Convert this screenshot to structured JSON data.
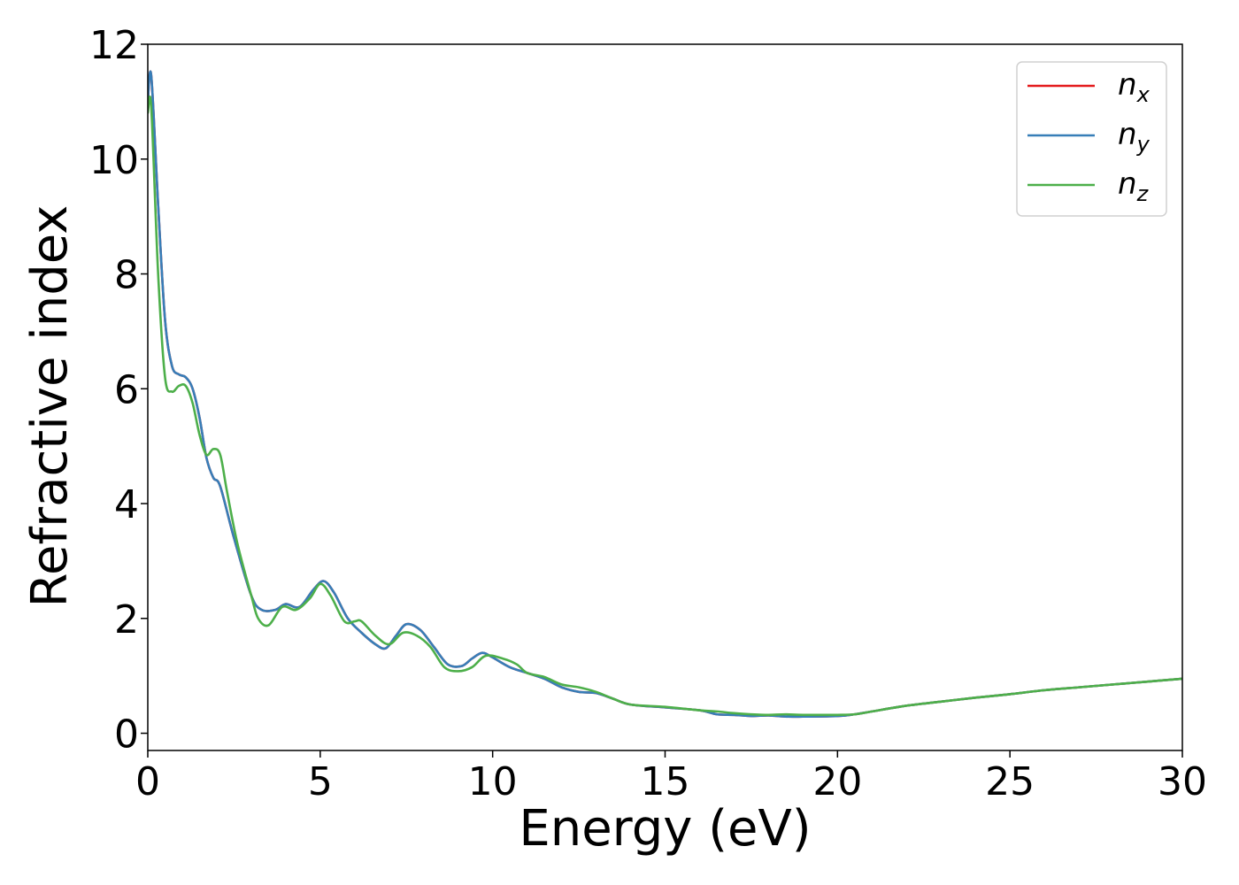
{
  "chart_data": {
    "type": "line",
    "title": "",
    "xlabel": "Energy (eV)",
    "ylabel": "Refractive index",
    "xlim": [
      0,
      30
    ],
    "ylim": [
      -0.3,
      12
    ],
    "xticks": [
      "0",
      "5",
      "10",
      "15",
      "20",
      "25",
      "30"
    ],
    "yticks": [
      "0",
      "2",
      "4",
      "6",
      "8",
      "10",
      "12"
    ],
    "grid": false,
    "legend_position": "top-right",
    "series": [
      {
        "name": "n",
        "subscript": "x",
        "color": "#e41a1c",
        "x": [
          0,
          0.1,
          0.3,
          0.5,
          0.7,
          0.9,
          1.1,
          1.3,
          1.5,
          1.7,
          1.9,
          2.1,
          2.5,
          3.0,
          3.3,
          3.7,
          4.0,
          4.4,
          4.8,
          5.1,
          5.4,
          5.8,
          6.2,
          6.6,
          6.9,
          7.2,
          7.5,
          7.9,
          8.3,
          8.7,
          9.1,
          9.4,
          9.7,
          10.0,
          10.5,
          11.0,
          11.5,
          12.0,
          12.5,
          13.0,
          13.5,
          14.0,
          15.0,
          16.0,
          16.5,
          17.0,
          17.5,
          18.0,
          18.5,
          19.0,
          20.0,
          20.5,
          21.0,
          22.0,
          23.0,
          24.0,
          25.0,
          26.0,
          27.0,
          28.0,
          29.0,
          30.0
        ],
        "y": [
          11.0,
          11.45,
          9.2,
          7.2,
          6.4,
          6.25,
          6.2,
          6.0,
          5.5,
          4.8,
          4.45,
          4.3,
          3.4,
          2.4,
          2.15,
          2.15,
          2.25,
          2.2,
          2.5,
          2.65,
          2.45,
          2.0,
          1.75,
          1.55,
          1.48,
          1.7,
          1.9,
          1.8,
          1.5,
          1.2,
          1.17,
          1.3,
          1.4,
          1.32,
          1.15,
          1.05,
          0.95,
          0.8,
          0.72,
          0.7,
          0.6,
          0.5,
          0.45,
          0.4,
          0.33,
          0.32,
          0.3,
          0.31,
          0.29,
          0.29,
          0.3,
          0.33,
          0.38,
          0.48,
          0.55,
          0.62,
          0.68,
          0.75,
          0.8,
          0.85,
          0.9,
          0.95
        ]
      },
      {
        "name": "n",
        "subscript": "y",
        "color": "#377eb8",
        "x": [
          0,
          0.1,
          0.3,
          0.5,
          0.7,
          0.9,
          1.1,
          1.3,
          1.5,
          1.7,
          1.9,
          2.1,
          2.5,
          3.0,
          3.3,
          3.7,
          4.0,
          4.4,
          4.8,
          5.1,
          5.4,
          5.8,
          6.2,
          6.6,
          6.9,
          7.2,
          7.5,
          7.9,
          8.3,
          8.7,
          9.1,
          9.4,
          9.7,
          10.0,
          10.5,
          11.0,
          11.5,
          12.0,
          12.5,
          13.0,
          13.5,
          14.0,
          15.0,
          16.0,
          16.5,
          17.0,
          17.5,
          18.0,
          18.5,
          19.0,
          20.0,
          20.5,
          21.0,
          22.0,
          23.0,
          24.0,
          25.0,
          26.0,
          27.0,
          28.0,
          29.0,
          30.0
        ],
        "y": [
          11.0,
          11.45,
          9.2,
          7.2,
          6.4,
          6.25,
          6.2,
          6.0,
          5.5,
          4.8,
          4.45,
          4.3,
          3.4,
          2.4,
          2.15,
          2.15,
          2.25,
          2.2,
          2.5,
          2.65,
          2.45,
          2.0,
          1.75,
          1.55,
          1.48,
          1.7,
          1.9,
          1.8,
          1.5,
          1.2,
          1.17,
          1.3,
          1.4,
          1.32,
          1.15,
          1.05,
          0.95,
          0.8,
          0.72,
          0.7,
          0.6,
          0.5,
          0.45,
          0.4,
          0.33,
          0.32,
          0.3,
          0.31,
          0.29,
          0.29,
          0.3,
          0.33,
          0.38,
          0.48,
          0.55,
          0.62,
          0.68,
          0.75,
          0.8,
          0.85,
          0.9,
          0.95
        ]
      },
      {
        "name": "n",
        "subscript": "z",
        "color": "#4daf4a",
        "x": [
          0,
          0.1,
          0.3,
          0.5,
          0.7,
          0.9,
          1.1,
          1.3,
          1.5,
          1.7,
          1.9,
          2.1,
          2.3,
          2.6,
          3.0,
          3.2,
          3.5,
          3.9,
          4.3,
          4.7,
          5.0,
          5.3,
          5.7,
          6.0,
          6.2,
          6.6,
          7.0,
          7.4,
          7.8,
          8.2,
          8.6,
          9.0,
          9.4,
          9.8,
          10.3,
          10.7,
          11.0,
          11.5,
          12.0,
          12.5,
          13.0,
          13.5,
          14.0,
          15.0,
          16.0,
          16.5,
          17.0,
          17.5,
          18.0,
          18.5,
          19.0,
          20.0,
          20.5,
          21.0,
          22.0,
          23.0,
          24.0,
          25.0,
          26.0,
          27.0,
          28.0,
          29.0,
          30.0
        ],
        "y": [
          10.8,
          10.9,
          8.0,
          6.2,
          5.95,
          6.05,
          6.05,
          5.75,
          5.2,
          4.85,
          4.95,
          4.85,
          4.2,
          3.3,
          2.4,
          2.0,
          1.88,
          2.2,
          2.15,
          2.35,
          2.6,
          2.4,
          1.95,
          1.95,
          1.95,
          1.7,
          1.55,
          1.75,
          1.7,
          1.5,
          1.15,
          1.08,
          1.15,
          1.35,
          1.3,
          1.2,
          1.05,
          0.98,
          0.85,
          0.8,
          0.72,
          0.6,
          0.5,
          0.46,
          0.4,
          0.38,
          0.35,
          0.33,
          0.32,
          0.33,
          0.32,
          0.32,
          0.33,
          0.38,
          0.48,
          0.55,
          0.62,
          0.68,
          0.75,
          0.8,
          0.85,
          0.9,
          0.95
        ]
      }
    ]
  }
}
